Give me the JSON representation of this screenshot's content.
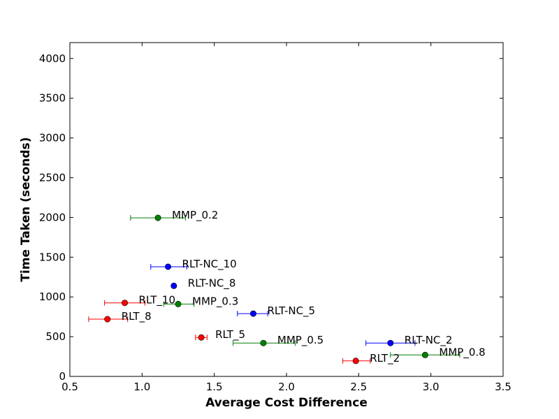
{
  "chart_data": {
    "type": "scatter",
    "title": "",
    "xlabel": "Average Cost Difference",
    "ylabel": "Time Taken (seconds)",
    "xlim": [
      0.5,
      3.5
    ],
    "ylim": [
      0,
      4200
    ],
    "xticks": [
      0.5,
      1.0,
      1.5,
      2.0,
      2.5,
      3.0,
      3.5
    ],
    "xtick_labels": [
      "0.5",
      "1.0",
      "1.5",
      "2.0",
      "2.5",
      "3.0",
      "3.5"
    ],
    "yticks": [
      0,
      500,
      1000,
      1500,
      2000,
      2500,
      3000,
      3500,
      4000
    ],
    "ytick_labels": [
      "0",
      "500",
      "1000",
      "1500",
      "2000",
      "2500",
      "3000",
      "3500",
      "4000"
    ],
    "grid": false,
    "legend": "none",
    "colors": {
      "RLT": "#ff0000",
      "RLT-NC": "#0000ff",
      "MMP": "#008000"
    },
    "points": [
      {
        "label": "MMP_0.2",
        "group": "MMP",
        "x": 1.11,
        "y": 1995,
        "xerr": [
          0.92,
          1.3
        ]
      },
      {
        "label": "RLT-NC_10",
        "group": "RLT-NC",
        "x": 1.18,
        "y": 1380,
        "xerr": [
          1.06,
          1.31
        ]
      },
      {
        "label": "RLT-NC_8",
        "group": "RLT-NC",
        "x": 1.22,
        "y": 1140,
        "xerr": [
          1.22,
          1.22
        ]
      },
      {
        "label": "RLT_10",
        "group": "RLT",
        "x": 0.88,
        "y": 925,
        "xerr": [
          0.74,
          1.02
        ]
      },
      {
        "label": "MMP_0.3",
        "group": "MMP",
        "x": 1.25,
        "y": 910,
        "xerr": [
          1.15,
          1.36
        ]
      },
      {
        "label": "RLT-NC_5",
        "group": "RLT-NC",
        "x": 1.77,
        "y": 790,
        "xerr": [
          1.66,
          1.87
        ]
      },
      {
        "label": "RLT_8",
        "group": "RLT",
        "x": 0.76,
        "y": 720,
        "xerr": [
          0.63,
          0.9
        ]
      },
      {
        "label": "RLT_5",
        "group": "RLT",
        "x": 1.41,
        "y": 490,
        "xerr": [
          1.37,
          1.45
        ]
      },
      {
        "label": "MMP_0.5",
        "group": "MMP",
        "x": 1.84,
        "y": 420,
        "xerr": [
          1.63,
          2.06
        ]
      },
      {
        "label": "RLT-NC_2",
        "group": "RLT-NC",
        "x": 2.72,
        "y": 420,
        "xerr": [
          2.55,
          2.89
        ]
      },
      {
        "label": "MMP_0.8",
        "group": "MMP",
        "x": 2.96,
        "y": 270,
        "xerr": [
          2.72,
          3.2
        ]
      },
      {
        "label": "RLT_2",
        "group": "RLT",
        "x": 2.48,
        "y": 195,
        "xerr": [
          2.39,
          2.58
        ]
      }
    ]
  }
}
